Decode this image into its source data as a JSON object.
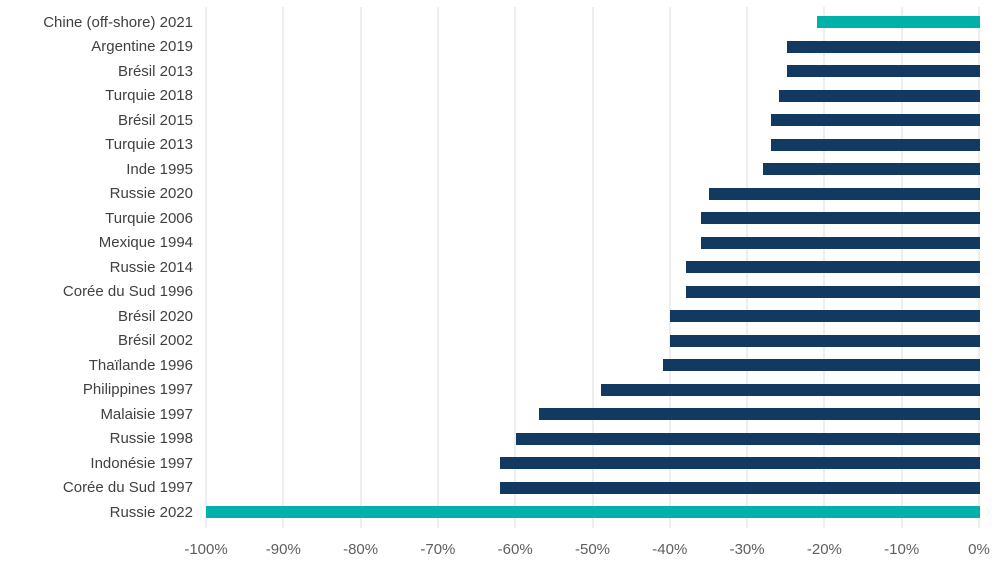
{
  "chart_data": {
    "type": "bar",
    "orientation": "horizontal",
    "title": "",
    "xlabel": "",
    "ylabel": "",
    "xlim": [
      -100,
      0
    ],
    "grid": "vertical",
    "legend": "none",
    "categories": [
      "Chine (off-shore) 2021",
      "Argentine 2019",
      "Brésil 2013",
      "Turquie 2018",
      "Brésil 2015",
      "Turquie 2013",
      "Inde 1995",
      "Russie 2020",
      "Turquie 2006",
      "Mexique 1994",
      "Russie 2014",
      "Corée du Sud 1996",
      "Brésil 2020",
      "Brésil 2002",
      "Thaïlande 1996",
      "Philippines 1997",
      "Malaisie 1997",
      "Russie 1998",
      "Indonésie 1997",
      "Corée du Sud 1997",
      "Russie 2022"
    ],
    "values": [
      -21,
      -25,
      -25,
      -26,
      -27,
      -27,
      -28,
      -35,
      -36,
      -36,
      -38,
      -38,
      -40,
      -40,
      -41,
      -49,
      -57,
      -60,
      -62,
      -62,
      -100
    ],
    "highlight_indices": [
      0,
      20
    ],
    "x_ticks": [
      "-100%",
      "-90%",
      "-80%",
      "-70%",
      "-60%",
      "-50%",
      "-40%",
      "-30%",
      "-20%",
      "-10%",
      "0%"
    ],
    "x_tick_values": [
      -100,
      -90,
      -80,
      -70,
      -60,
      -50,
      -40,
      -30,
      -20,
      -10,
      0
    ],
    "colors": {
      "bar": "#123A60",
      "highlight": "#00B1A9",
      "gridline": "#DCDCDC",
      "label_text": "#404040",
      "tick_text": "#5F5F5F",
      "background": "#FFFFFF"
    }
  }
}
